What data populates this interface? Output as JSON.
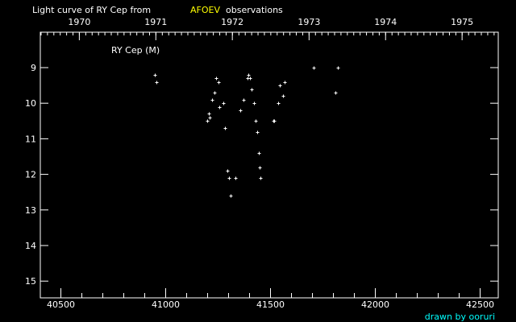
{
  "chart_data": {
    "type": "scatter",
    "title_prefix": "Light curve of RY Cep from",
    "title_source": "AFOEV",
    "title_suffix": "observations",
    "series_label": "RY Cep (M)",
    "credit": "drawn by ooruri",
    "xlabel": "",
    "ylabel": "",
    "xlim": [
      40400,
      42590
    ],
    "ylim": [
      15.5,
      8.2
    ],
    "y_inverted": true,
    "x_ticks": [
      40500,
      41000,
      41500,
      42000,
      42500
    ],
    "y_ticks": [
      9,
      10,
      11,
      12,
      13,
      14,
      15
    ],
    "year_ticks": [
      {
        "label": "1970",
        "jd": 40588
      },
      {
        "label": "1971",
        "jd": 40953
      },
      {
        "label": "1972",
        "jd": 41318
      },
      {
        "label": "1973",
        "jd": 41684
      },
      {
        "label": "1974",
        "jd": 42049
      },
      {
        "label": "1975",
        "jd": 42414
      }
    ],
    "grid": false,
    "colors": {
      "background": "#000000",
      "foreground": "#ffffff",
      "source": "#ffff00",
      "credit": "#00ffff"
    },
    "points": [
      [
        40949,
        9.2
      ],
      [
        40957,
        9.4
      ],
      [
        41199,
        10.5
      ],
      [
        41207,
        10.3
      ],
      [
        41211,
        10.4
      ],
      [
        41222,
        9.9
      ],
      [
        41234,
        9.7
      ],
      [
        41241,
        9.3
      ],
      [
        41253,
        9.4
      ],
      [
        41257,
        10.1
      ],
      [
        41276,
        10.0
      ],
      [
        41284,
        10.7
      ],
      [
        41295,
        11.9
      ],
      [
        41303,
        12.1
      ],
      [
        41311,
        12.6
      ],
      [
        41334,
        12.1
      ],
      [
        41357,
        10.2
      ],
      [
        41372,
        9.9
      ],
      [
        41392,
        9.3
      ],
      [
        41395,
        9.2
      ],
      [
        41403,
        9.3
      ],
      [
        41411,
        9.6
      ],
      [
        41422,
        10.0
      ],
      [
        41430,
        10.5
      ],
      [
        41438,
        10.8
      ],
      [
        41445,
        11.4
      ],
      [
        41449,
        11.8
      ],
      [
        41453,
        12.1
      ],
      [
        41514,
        10.5
      ],
      [
        41517,
        10.5
      ],
      [
        41538,
        10.0
      ],
      [
        41545,
        9.5
      ],
      [
        41561,
        9.8
      ],
      [
        41568,
        9.4
      ],
      [
        41707,
        9.0
      ],
      [
        41811,
        9.7
      ],
      [
        41822,
        9.0
      ]
    ]
  }
}
